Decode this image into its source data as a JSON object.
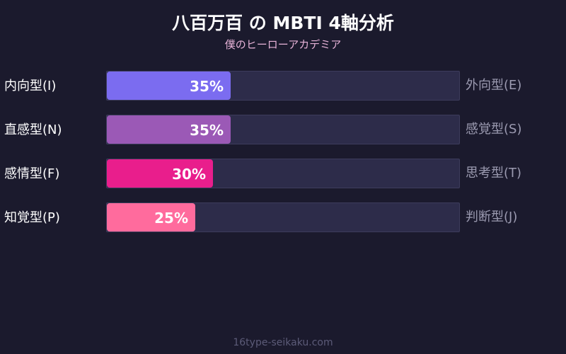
{
  "header": {
    "title": "八百万百 の MBTI 4軸分析",
    "subtitle": "僕のヒーローアカデミア"
  },
  "chart_data": {
    "type": "bar",
    "orientation": "horizontal",
    "xlim": [
      0,
      100
    ],
    "rows": [
      {
        "left_label": "内向型(I)",
        "right_label": "外向型(E)",
        "value": 35,
        "value_label": "35%",
        "color": "#7b6cf0"
      },
      {
        "left_label": "直感型(N)",
        "right_label": "感覚型(S)",
        "value": 35,
        "value_label": "35%",
        "color": "#9b59b6"
      },
      {
        "left_label": "感情型(F)",
        "right_label": "思考型(T)",
        "value": 30,
        "value_label": "30%",
        "color": "#e91e8c"
      },
      {
        "left_label": "知覚型(P)",
        "right_label": "判断型(J)",
        "value": 25,
        "value_label": "25%",
        "color": "#ff6b9d"
      }
    ]
  },
  "footer": {
    "site": "16type-seikaku.com"
  }
}
